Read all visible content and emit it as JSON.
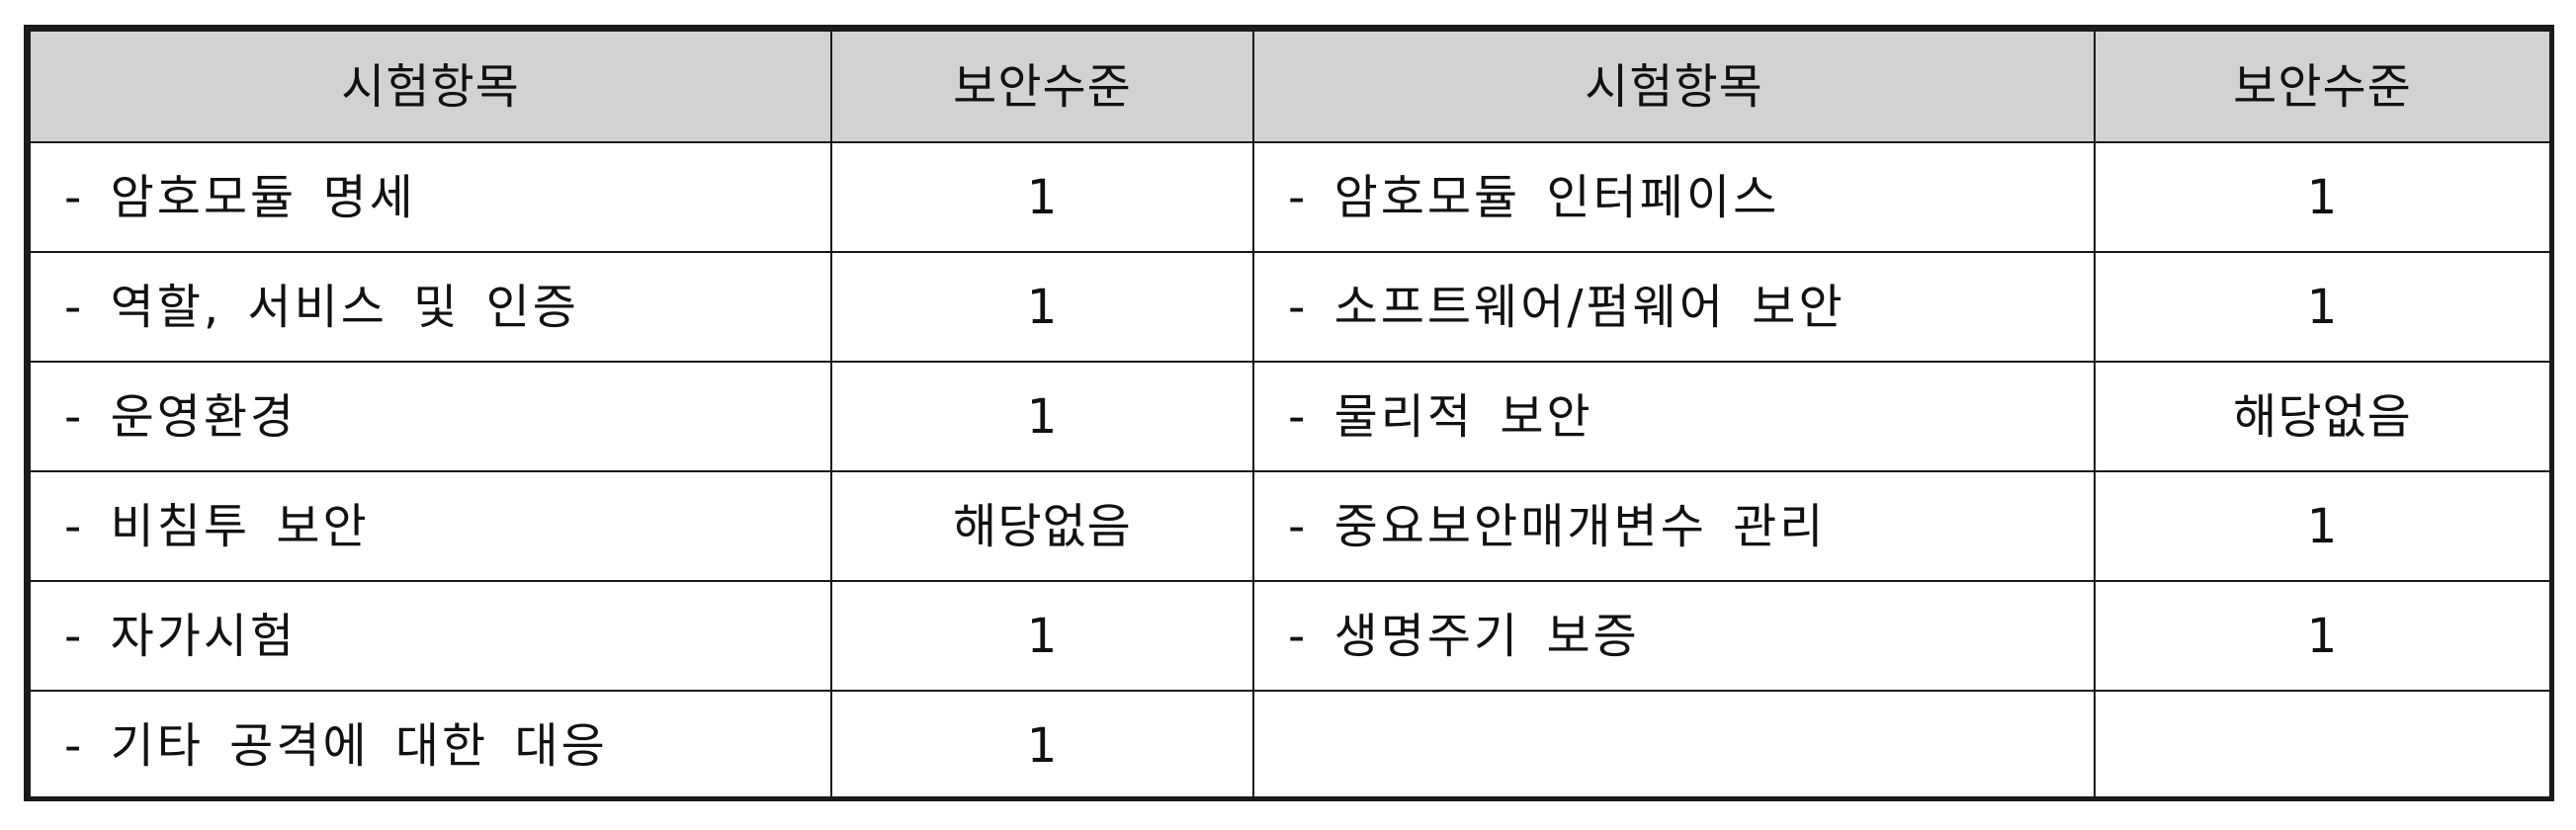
{
  "table": {
    "headers": [
      "시험항목",
      "보안수준",
      "시험항목",
      "보안수준"
    ],
    "rows": [
      {
        "item_left": "- 암호모듈 명세",
        "level_left": "1",
        "item_right": "- 암호모듈 인터페이스",
        "level_right": "1"
      },
      {
        "item_left": "- 역할, 서비스 및 인증",
        "level_left": "1",
        "item_right": "- 소프트웨어/펌웨어 보안",
        "level_right": "1"
      },
      {
        "item_left": "- 운영환경",
        "level_left": "1",
        "item_right": "- 물리적 보안",
        "level_right": "해당없음"
      },
      {
        "item_left": "- 비침투 보안",
        "level_left": "해당없음",
        "item_right": "- 중요보안매개변수 관리",
        "level_right": "1"
      },
      {
        "item_left": "- 자가시험",
        "level_left": "1",
        "item_right": "- 생명주기 보증",
        "level_right": "1"
      },
      {
        "item_left": "- 기타 공격에 대한 대응",
        "level_left": "1",
        "item_right": "",
        "level_right": ""
      }
    ]
  }
}
